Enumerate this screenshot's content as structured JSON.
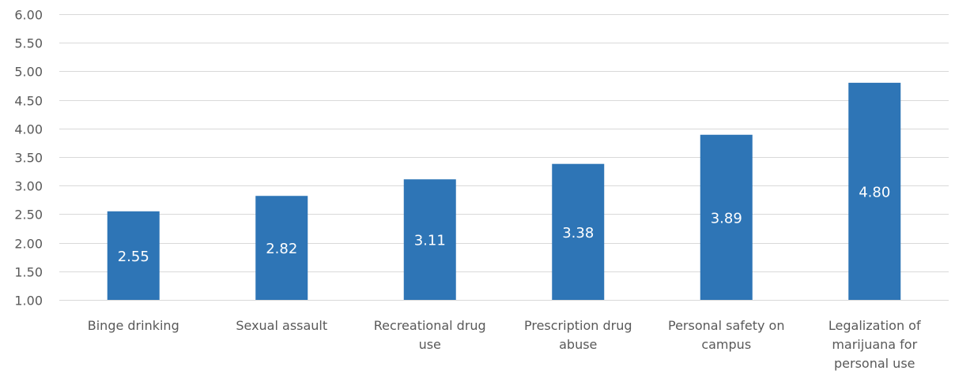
{
  "chart_data": {
    "type": "bar",
    "title": "",
    "xlabel": "",
    "ylabel": "",
    "ylim": [
      1.0,
      6.0
    ],
    "yticks": [
      "1.00",
      "1.50",
      "2.00",
      "2.50",
      "3.00",
      "3.50",
      "4.00",
      "4.50",
      "5.00",
      "5.50",
      "6.00"
    ],
    "grid": true,
    "legend": "none",
    "categories": [
      [
        "Binge drinking"
      ],
      [
        "Sexual assault"
      ],
      [
        "Recreational drug",
        "use"
      ],
      [
        "Prescription drug",
        "abuse"
      ],
      [
        "Personal safety on",
        "campus"
      ],
      [
        "Legalization of",
        "marijuana for",
        "personal use"
      ]
    ],
    "values": [
      2.55,
      2.82,
      3.11,
      3.38,
      3.89,
      4.8
    ],
    "data_labels": [
      "2.55",
      "2.82",
      "3.11",
      "3.38",
      "3.89",
      "4.80"
    ],
    "bar_color": "#2e75b6",
    "label_color": "#ffffff",
    "grid_color": "#d9d9d9",
    "text_color": "#595959"
  }
}
